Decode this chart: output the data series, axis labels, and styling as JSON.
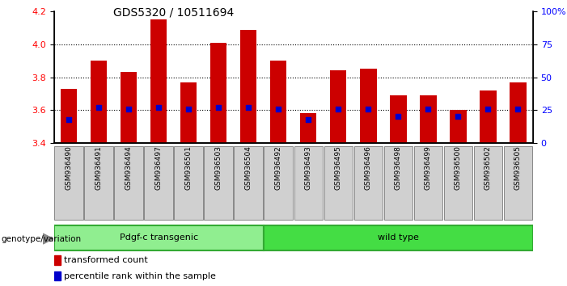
{
  "title": "GDS5320 / 10511694",
  "samples": [
    "GSM936490",
    "GSM936491",
    "GSM936494",
    "GSM936497",
    "GSM936501",
    "GSM936503",
    "GSM936504",
    "GSM936492",
    "GSM936493",
    "GSM936495",
    "GSM936496",
    "GSM936498",
    "GSM936499",
    "GSM936500",
    "GSM936502",
    "GSM936505"
  ],
  "transformed_count": [
    3.73,
    3.9,
    3.83,
    4.15,
    3.77,
    4.01,
    4.09,
    3.9,
    3.58,
    3.84,
    3.85,
    3.69,
    3.69,
    3.6,
    3.72,
    3.77
  ],
  "percentile_rank": [
    18,
    27,
    26,
    27,
    26,
    27,
    27,
    26,
    18,
    26,
    26,
    20,
    26,
    20,
    26,
    26
  ],
  "ylim": [
    3.4,
    4.2
  ],
  "y2lim": [
    0,
    100
  ],
  "yticks": [
    3.4,
    3.6,
    3.8,
    4.0,
    4.2
  ],
  "y2ticks": [
    0,
    25,
    50,
    75,
    100
  ],
  "bar_color": "#cc0000",
  "dot_color": "#0000cc",
  "groups": [
    {
      "label": "Pdgf-c transgenic",
      "color": "#90ee90",
      "dark_color": "#33aa33",
      "start": 0,
      "end": 7
    },
    {
      "label": "wild type",
      "color": "#44dd44",
      "dark_color": "#33aa33",
      "start": 7,
      "end": 16
    }
  ],
  "xlabel_genotype": "genotype/variation",
  "legend_red": "transformed count",
  "legend_blue": "percentile rank within the sample",
  "background_color": "#ffffff",
  "bar_width": 0.55,
  "base_value": 3.4,
  "label_box_color": "#d0d0d0",
  "grid_lines": [
    3.6,
    3.8,
    4.0
  ],
  "title_fontsize": 10
}
